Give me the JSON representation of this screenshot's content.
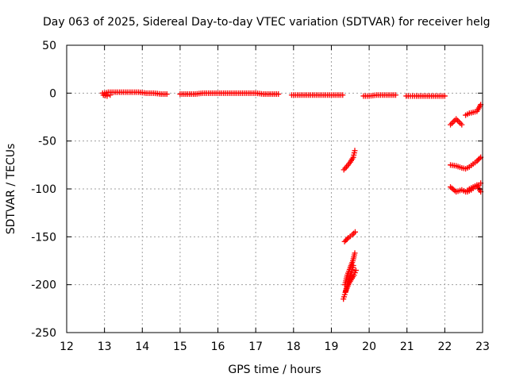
{
  "chart_data": {
    "type": "scatter",
    "title": "Day 063 of 2025, Sidereal Day-to-day VTEC variation (SDTVAR) for receiver helg",
    "xlabel": "GPS time / hours",
    "ylabel": "SDTVAR / TECUs",
    "xlim": [
      12,
      23
    ],
    "ylim": [
      -250,
      50
    ],
    "xticks": [
      12,
      13,
      14,
      15,
      16,
      17,
      18,
      19,
      20,
      21,
      22,
      23
    ],
    "yticks": [
      50,
      0,
      -50,
      -100,
      -150,
      -200,
      -250
    ],
    "grid": true,
    "marker": "+",
    "color": "#ff0000",
    "series": [
      {
        "name": "SDTVAR",
        "segments": [
          {
            "x": [
              12.95,
              13.0,
              13.1,
              13.2,
              13.3,
              13.5,
              13.7,
              13.9,
              14.1,
              14.3,
              14.5,
              14.65
            ],
            "y": [
              0,
              0,
              1,
              1,
              1,
              1,
              1,
              1,
              0,
              0,
              -1,
              -1
            ]
          },
          {
            "x": [
              12.97,
              13.07,
              13.15
            ],
            "y": [
              -2,
              -3,
              -2
            ]
          },
          {
            "x": [
              15.0,
              15.2,
              15.4,
              15.6,
              15.8,
              16.0,
              16.2,
              16.4,
              16.6,
              16.8,
              17.0,
              17.2,
              17.4,
              17.6
            ],
            "y": [
              -1,
              -1,
              -1,
              0,
              0,
              0,
              0,
              0,
              0,
              0,
              0,
              -1,
              -1,
              -1
            ]
          },
          {
            "x": [
              17.95,
              18.1,
              18.3,
              18.5,
              18.7,
              18.9,
              19.1,
              19.3
            ],
            "y": [
              -2,
              -2,
              -2,
              -2,
              -2,
              -2,
              -2,
              -2
            ]
          },
          {
            "x": [
              19.85,
              20.0,
              20.2,
              20.4,
              20.6,
              20.7
            ],
            "y": [
              -3,
              -3,
              -2,
              -2,
              -2,
              -2
            ]
          },
          {
            "x": [
              20.98,
              21.2,
              21.4,
              21.6,
              21.8,
              22.0
            ],
            "y": [
              -3,
              -3,
              -3,
              -3,
              -3,
              -3
            ]
          },
          {
            "x": [
              19.33,
              19.4,
              19.5,
              19.58,
              19.62
            ],
            "y": [
              -80,
              -77,
              -72,
              -67,
              -60
            ]
          },
          {
            "x": [
              19.35,
              19.45,
              19.55,
              19.63
            ],
            "y": [
              -155,
              -151,
              -148,
              -145
            ]
          },
          {
            "x": [
              19.36,
              19.42,
              19.5,
              19.57,
              19.62
            ],
            "y": [
              -200,
              -190,
              -182,
              -175,
              -167
            ]
          },
          {
            "x": [
              19.32,
              19.37,
              19.42,
              19.48,
              19.54,
              19.58
            ],
            "y": [
              -215,
              -208,
              -200,
              -193,
              -186,
              -180
            ]
          },
          {
            "x": [
              19.38,
              19.45,
              19.52,
              19.6,
              19.65
            ],
            "y": [
              -207,
              -200,
              -195,
              -190,
              -185
            ]
          },
          {
            "x": [
              22.15,
              22.3,
              22.45
            ],
            "y": [
              -33,
              -27,
              -33
            ]
          },
          {
            "x": [
              22.55,
              22.65,
              22.75,
              22.85,
              22.95
            ],
            "y": [
              -23,
              -21,
              -20,
              -19,
              -12
            ]
          },
          {
            "x": [
              22.15,
              22.3,
              22.45,
              22.55,
              22.65,
              22.75,
              22.85,
              22.95
            ],
            "y": [
              -75,
              -76,
              -78,
              -79,
              -77,
              -74,
              -71,
              -67
            ]
          },
          {
            "x": [
              22.15,
              22.3,
              22.45,
              22.55,
              22.65,
              22.75,
              22.85,
              22.95
            ],
            "y": [
              -98,
              -103,
              -101,
              -103,
              -100,
              -98,
              -96,
              -103
            ]
          },
          {
            "x": [
              22.6,
              22.7,
              22.8,
              22.9,
              22.95
            ],
            "y": [
              -103,
              -101,
              -98,
              -96,
              -94
            ]
          }
        ]
      }
    ]
  }
}
